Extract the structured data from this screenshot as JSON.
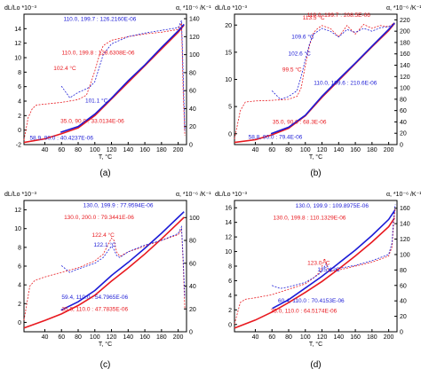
{
  "colors": {
    "red": "#e8191f",
    "blue": "#1c1cd6",
    "axis": "#000000"
  },
  "chart_data": [
    {
      "type": "line",
      "panel_label": "(a)",
      "xlabel": "T, °C",
      "ylabel_left": "dL/Lo *10⁻³",
      "ylabel_right": "α, *10⁻⁶ /K⁻¹",
      "xlim": [
        15,
        210
      ],
      "ylim_left": [
        -2,
        16
      ],
      "ylim_right": [
        0,
        145
      ],
      "xticks": [
        40,
        60,
        80,
        100,
        120,
        140,
        160,
        180,
        200
      ],
      "yticks_left": [
        -2,
        0,
        2,
        4,
        6,
        8,
        10,
        12,
        14
      ],
      "yticks_right": [
        0,
        20,
        40,
        60,
        80,
        100,
        120,
        140
      ],
      "series": [
        {
          "color": "red",
          "style": "solid",
          "axis": "left",
          "x": [
            15,
            40,
            60,
            80,
            100,
            120,
            140,
            160,
            180,
            200,
            207
          ],
          "y": [
            -1.7,
            -1.2,
            -0.5,
            0.3,
            2,
            4.3,
            6.6,
            8.9,
            11.2,
            13.5,
            14.5
          ]
        },
        {
          "color": "blue",
          "style": "solid",
          "axis": "left",
          "x": [
            58.9,
            80,
            100,
            120,
            140,
            160,
            180,
            200,
            207
          ],
          "y": [
            -0.3,
            0.5,
            2.2,
            4.4,
            6.8,
            9,
            11.4,
            13.7,
            14.6
          ]
        },
        {
          "color": "red",
          "style": "dashed",
          "axis": "right",
          "x": [
            15,
            20,
            25,
            30,
            40,
            60,
            80,
            90,
            95,
            100,
            105,
            110,
            120,
            140,
            160,
            180,
            200,
            204,
            206,
            208
          ],
          "y": [
            5,
            30,
            40,
            44,
            45,
            47,
            50,
            55,
            68,
            82,
            98,
            110,
            116,
            120,
            123,
            125,
            128,
            135,
            60,
            10
          ]
        },
        {
          "color": "blue",
          "style": "dashed",
          "axis": "right",
          "x": [
            60,
            70,
            80,
            90,
            95,
            100,
            105,
            110,
            120,
            140,
            160,
            180,
            200,
            204,
            206,
            208
          ],
          "y": [
            65,
            52,
            58,
            62,
            65,
            70,
            85,
            100,
            112,
            120,
            124,
            127,
            130,
            138,
            80,
            15
          ]
        }
      ],
      "annotations": [
        {
          "text": "110.0, 199.7 : 126.2160E-06",
          "color": "blue",
          "x": 106,
          "y": 15.1
        },
        {
          "text": "110.0, 199.8 : 128.6308E-06",
          "color": "red",
          "x": 104,
          "y": 10.4
        },
        {
          "text": "102.4 °C",
          "color": "red",
          "x": 64,
          "y": 8.3
        },
        {
          "text": "101.1 °C",
          "color": "blue",
          "x": 102,
          "y": 3.8
        },
        {
          "text": "35.0, 90.0 : 33.0134E-06",
          "color": "red",
          "x": 97,
          "y": 1
        },
        {
          "text": "58.9, 90.0 : 40.4237E-06",
          "color": "blue",
          "x": 60,
          "y": -1.3
        }
      ]
    },
    {
      "type": "line",
      "panel_label": "(b)",
      "xlabel": "T, °C",
      "ylabel_left": "dL/Lo *10⁻³",
      "ylabel_right": "α, *10⁻⁶ /K⁻¹",
      "xlim": [
        15,
        210
      ],
      "ylim_left": [
        -2,
        22
      ],
      "ylim_right": [
        0,
        230
      ],
      "xticks": [
        40,
        60,
        80,
        100,
        120,
        140,
        160,
        180,
        200
      ],
      "yticks_left": [
        0,
        5,
        10,
        15,
        20
      ],
      "yticks_right": [
        0,
        20,
        40,
        60,
        80,
        100,
        120,
        140,
        160,
        180,
        200,
        220
      ],
      "series": [
        {
          "color": "red",
          "style": "solid",
          "axis": "left",
          "x": [
            15,
            40,
            60,
            80,
            100,
            120,
            140,
            160,
            180,
            200,
            207
          ],
          "y": [
            -1.6,
            -1.1,
            -0.2,
            1,
            3.3,
            6.7,
            9.8,
            12.9,
            16,
            19,
            20.3
          ]
        },
        {
          "color": "blue",
          "style": "solid",
          "axis": "left",
          "x": [
            58.8,
            80,
            100,
            120,
            140,
            160,
            180,
            200,
            207
          ],
          "y": [
            0,
            1.2,
            3.4,
            6.9,
            10,
            13,
            16.1,
            19.2,
            20.4
          ]
        },
        {
          "color": "red",
          "style": "dashed",
          "axis": "right",
          "x": [
            15,
            22,
            28,
            40,
            60,
            80,
            90,
            95,
            100,
            105,
            110,
            115,
            120,
            130,
            140,
            145,
            150,
            160,
            170,
            180,
            190,
            200,
            207
          ],
          "y": [
            10,
            60,
            75,
            77,
            78,
            80,
            85,
            100,
            140,
            175,
            198,
            205,
            210,
            205,
            190,
            200,
            210,
            195,
            212,
            205,
            210,
            208,
            215
          ]
        },
        {
          "color": "blue",
          "style": "dashed",
          "axis": "right",
          "x": [
            60,
            70,
            80,
            90,
            95,
            100,
            105,
            110,
            115,
            120,
            130,
            140,
            150,
            160,
            170,
            180,
            190,
            200,
            207
          ],
          "y": [
            95,
            80,
            85,
            95,
            120,
            150,
            178,
            195,
            200,
            205,
            200,
            190,
            203,
            198,
            205,
            200,
            206,
            208,
            212
          ]
        }
      ],
      "annotations": [
        {
          "text": "113.5 °C",
          "color": "red",
          "x": 110,
          "y": 21
        },
        {
          "text": "110.0, 199.7 : 208.5E-06",
          "color": "red",
          "x": 140,
          "y": 21.5
        },
        {
          "text": "109.6 °C",
          "color": "blue",
          "x": 97,
          "y": 17.5
        },
        {
          "text": "102.6 °C",
          "color": "blue",
          "x": 93,
          "y": 14.4
        },
        {
          "text": "99.5 °C",
          "color": "red",
          "x": 84,
          "y": 11.5
        },
        {
          "text": "110.0, 199.6 : 210.6E-06",
          "color": "blue",
          "x": 148,
          "y": 9
        },
        {
          "text": "35.0, 90.0 : 68.3E-06",
          "color": "red",
          "x": 93,
          "y": 1.8
        },
        {
          "text": "58.8, 90.0 : 79.4E-06",
          "color": "blue",
          "x": 64,
          "y": -0.9
        }
      ]
    },
    {
      "type": "line",
      "panel_label": "(c)",
      "xlabel": "T, °C",
      "ylabel_left": "dL/Lo *10⁻³",
      "ylabel_right": "α, *10⁻⁶ /K⁻¹",
      "xlim": [
        15,
        210
      ],
      "ylim_left": [
        -1,
        13
      ],
      "ylim_right": [
        0,
        115
      ],
      "xticks": [
        40,
        60,
        80,
        100,
        120,
        140,
        160,
        180,
        200
      ],
      "yticks_left": [
        0,
        2,
        4,
        6,
        8,
        10,
        12
      ],
      "yticks_right": [
        0,
        20,
        40,
        60,
        80,
        100
      ],
      "series": [
        {
          "color": "red",
          "style": "solid",
          "axis": "left",
          "x": [
            15,
            40,
            60,
            80,
            100,
            120,
            140,
            160,
            180,
            200,
            207
          ],
          "y": [
            -0.6,
            0.2,
            0.9,
            1.8,
            2.9,
            4.4,
            5.8,
            7.3,
            8.9,
            10.6,
            11.2
          ]
        },
        {
          "color": "blue",
          "style": "solid",
          "axis": "left",
          "x": [
            59.4,
            80,
            100,
            120,
            140,
            160,
            180,
            200,
            207
          ],
          "y": [
            1.3,
            2.2,
            3.4,
            5,
            6.4,
            7.9,
            9.5,
            11.2,
            11.8
          ]
        },
        {
          "color": "red",
          "style": "dashed",
          "axis": "right",
          "x": [
            15,
            22,
            28,
            40,
            60,
            80,
            100,
            110,
            115,
            120,
            123,
            126,
            130,
            140,
            160,
            180,
            200,
            204,
            206,
            208
          ],
          "y": [
            10,
            40,
            45,
            48,
            52,
            56,
            62,
            68,
            75,
            82,
            80,
            70,
            66,
            70,
            75,
            80,
            85,
            90,
            60,
            20
          ]
        },
        {
          "color": "blue",
          "style": "dashed",
          "axis": "right",
          "x": [
            60,
            70,
            80,
            100,
            110,
            115,
            120,
            123,
            126,
            130,
            140,
            160,
            180,
            200,
            204,
            206,
            208
          ],
          "y": [
            58,
            52,
            55,
            60,
            65,
            70,
            75,
            72,
            67,
            65,
            70,
            76,
            80,
            86,
            92,
            65,
            30
          ]
        }
      ],
      "annotations": [
        {
          "text": "130.0, 199.9 : 77.9594E-06",
          "color": "blue",
          "x": 128,
          "y": 12.3
        },
        {
          "text": "130.0, 200.0 : 79.3441E-06",
          "color": "red",
          "x": 105,
          "y": 11
        },
        {
          "text": "122.4 °C",
          "color": "red",
          "x": 110,
          "y": 9.1
        },
        {
          "text": "122.1 °C",
          "color": "blue",
          "x": 112,
          "y": 8.1
        },
        {
          "text": "59.4, 110.0 : 54.7965E-06",
          "color": "blue",
          "x": 100,
          "y": 2.5
        },
        {
          "text": "35.0, 110.0 : 47.7835E-06",
          "color": "red",
          "x": 100,
          "y": 1.2
        }
      ]
    },
    {
      "type": "line",
      "panel_label": "(d)",
      "xlabel": "T, °C",
      "ylabel_left": "dL/Lo *10⁻³",
      "ylabel_right": "α, *10⁻⁶ /K⁻¹",
      "xlim": [
        15,
        210
      ],
      "ylim_left": [
        -1,
        17
      ],
      "ylim_right": [
        0,
        170
      ],
      "xticks": [
        40,
        60,
        80,
        100,
        120,
        140,
        160,
        180,
        200
      ],
      "yticks_left": [
        0,
        2,
        4,
        6,
        8,
        10,
        12,
        14,
        16
      ],
      "yticks_right": [
        0,
        20,
        40,
        60,
        80,
        100,
        120,
        140,
        160
      ],
      "series": [
        {
          "color": "red",
          "style": "solid",
          "axis": "left",
          "x": [
            15,
            40,
            60,
            80,
            100,
            120,
            140,
            160,
            180,
            200,
            207
          ],
          "y": [
            -0.5,
            0.6,
            1.7,
            3,
            4.4,
            5.9,
            7.6,
            9.4,
            11.3,
            13.4,
            14.6
          ]
        },
        {
          "color": "blue",
          "style": "solid",
          "axis": "left",
          "x": [
            60.4,
            80,
            100,
            120,
            140,
            160,
            180,
            200,
            207
          ],
          "y": [
            2.2,
            3.4,
            5,
            6.6,
            8.4,
            10.2,
            12.2,
            14.4,
            15.6
          ]
        },
        {
          "color": "red",
          "style": "dashed",
          "axis": "right",
          "x": [
            15,
            22,
            28,
            40,
            60,
            80,
            100,
            110,
            118,
            123,
            128,
            140,
            160,
            180,
            200,
            204,
            206,
            208
          ],
          "y": [
            10,
            38,
            42,
            44,
            48,
            55,
            62,
            70,
            78,
            95,
            78,
            80,
            85,
            90,
            98,
            110,
            140,
            160
          ]
        },
        {
          "color": "blue",
          "style": "dashed",
          "axis": "right",
          "x": [
            60,
            70,
            80,
            100,
            110,
            118,
            125,
            130,
            140,
            160,
            180,
            200,
            204,
            206,
            208
          ],
          "y": [
            60,
            56,
            58,
            64,
            70,
            76,
            88,
            78,
            82,
            86,
            92,
            100,
            115,
            150,
            165
          ]
        }
      ],
      "annotations": [
        {
          "text": "130.0, 199.9 : 109.8975E-06",
          "color": "blue",
          "x": 132,
          "y": 16
        },
        {
          "text": "130.0, 199.8 : 110.1329E-06",
          "color": "red",
          "x": 105,
          "y": 14.4
        },
        {
          "text": "123.0 °C",
          "color": "red",
          "x": 116,
          "y": 8.2
        },
        {
          "text": "125.4 °C",
          "color": "blue",
          "x": 128,
          "y": 7.3
        },
        {
          "text": "60.4, 110.0 : 70.4153E-06",
          "color": "blue",
          "x": 107,
          "y": 3
        },
        {
          "text": "35.0, 110.0 : 64.5174E-06",
          "color": "red",
          "x": 98,
          "y": 1.6
        }
      ]
    }
  ]
}
